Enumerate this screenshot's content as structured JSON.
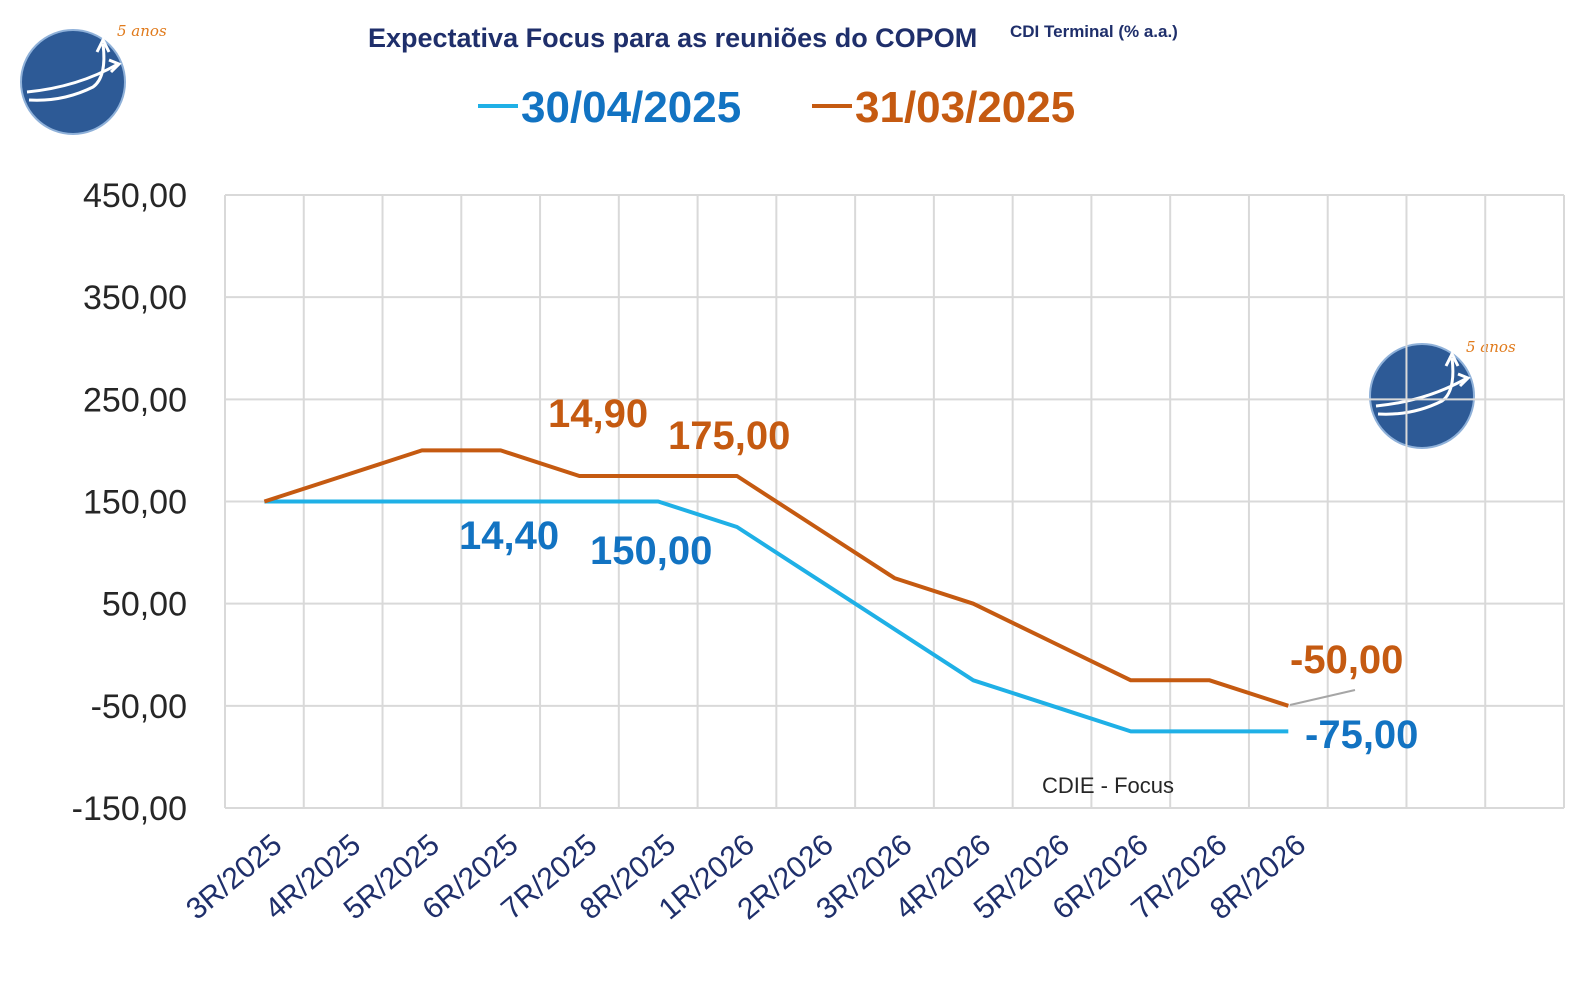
{
  "chart_data": {
    "type": "line",
    "title": "Expectativa Focus para as reuniões do COPOM",
    "subtitle": "CDI Terminal (% a.a.)",
    "categories": [
      "3R/2025",
      "4R/2025",
      "5R/2025",
      "6R/2025",
      "7R/2025",
      "8R/2025",
      "1R/2026",
      "2R/2026",
      "3R/2026",
      "4R/2026",
      "5R/2026",
      "6R/2026",
      "7R/2026",
      "8R/2026"
    ],
    "y_ticks": [
      "450,00",
      "350,00",
      "250,00",
      "150,00",
      "50,00",
      "-50,00",
      "-150,00"
    ],
    "ylim": [
      -150,
      450
    ],
    "grid": true,
    "legend_position": "top-center",
    "series": [
      {
        "name": "30/04/2025",
        "color": "#1fb0e6",
        "label_color": "#1273c2",
        "values": [
          150,
          150,
          150,
          150,
          150,
          150,
          125,
          75,
          25,
          -25,
          -50,
          -75,
          -75,
          -75
        ]
      },
      {
        "name": "31/03/2025",
        "color": "#c55a11",
        "label_color": "#c55a11",
        "values": [
          150,
          175,
          200,
          200,
          175,
          175,
          175,
          125,
          75,
          50,
          12.5,
          -25,
          -25,
          -50
        ]
      }
    ],
    "annotations": [
      {
        "text": "14,90",
        "color": "#c55a11"
      },
      {
        "text": "175,00",
        "color": "#c55a11"
      },
      {
        "text": "14,40",
        "color": "#1273c2"
      },
      {
        "text": "150,00",
        "color": "#1273c2"
      },
      {
        "text": "-50,00",
        "color": "#c55a11"
      },
      {
        "text": "-75,00",
        "color": "#1273c2"
      }
    ],
    "source_note": "CDIE - Focus"
  },
  "logo": {
    "tag": "5 anos"
  },
  "colors": {
    "gridline": "#d9d9d9",
    "title": "#1f2f6b",
    "logo_fill": "#2d5a96"
  }
}
